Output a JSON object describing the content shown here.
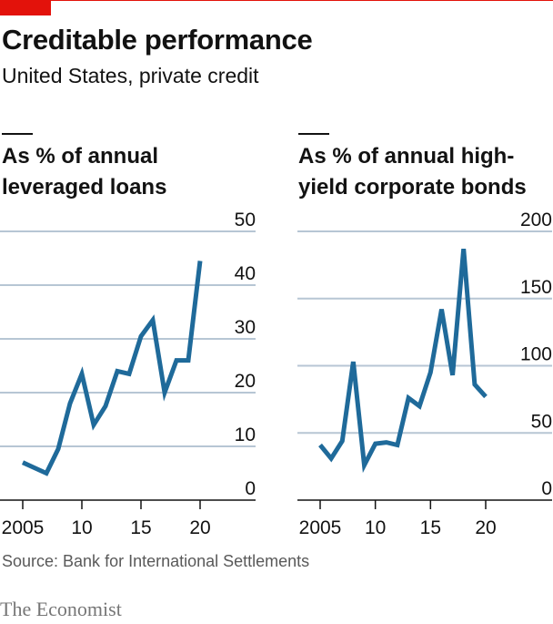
{
  "header": {
    "title": "Creditable performance",
    "subtitle": "United States, private credit"
  },
  "colors": {
    "line": "#1f6a9a",
    "grid": "#b7c6d4",
    "accent": "#e3120b"
  },
  "chart_data": [
    {
      "type": "line",
      "title_lines": [
        "As % of annual",
        "leveraged loans"
      ],
      "x": [
        2005,
        2006,
        2007,
        2008,
        2009,
        2010,
        2011,
        2012,
        2013,
        2014,
        2015,
        2016,
        2017,
        2018,
        2019,
        2020
      ],
      "values": [
        7,
        6,
        5,
        9.5,
        18,
        23.5,
        14,
        17.5,
        24,
        23.5,
        30.5,
        33.5,
        20,
        26,
        26,
        44.5
      ],
      "ylim": [
        0,
        50
      ],
      "yticks": [
        0,
        10,
        20,
        30,
        40,
        50
      ],
      "xticks": [
        2005,
        2010,
        2015,
        2020
      ],
      "xtick_labels": [
        "2005",
        "10",
        "15",
        "20"
      ],
      "grid": true,
      "y_axis_side": "right"
    },
    {
      "type": "line",
      "title_lines": [
        "As % of annual high-",
        "yield corporate bonds"
      ],
      "x": [
        2005,
        2006,
        2007,
        2008,
        2009,
        2010,
        2011,
        2012,
        2013,
        2014,
        2015,
        2016,
        2017,
        2018,
        2019,
        2020
      ],
      "values": [
        41,
        31,
        44,
        103,
        26,
        42,
        43,
        41,
        76,
        70,
        95,
        142,
        93,
        187,
        86,
        77
      ],
      "ylim": [
        0,
        200
      ],
      "yticks": [
        0,
        50,
        100,
        150,
        200
      ],
      "xticks": [
        2005,
        2010,
        2015,
        2020
      ],
      "xtick_labels": [
        "2005",
        "10",
        "15",
        "20"
      ],
      "grid": true,
      "y_axis_side": "right"
    }
  ],
  "footer": {
    "source": "Source: Bank for International Settlements",
    "brand": "The Economist"
  }
}
